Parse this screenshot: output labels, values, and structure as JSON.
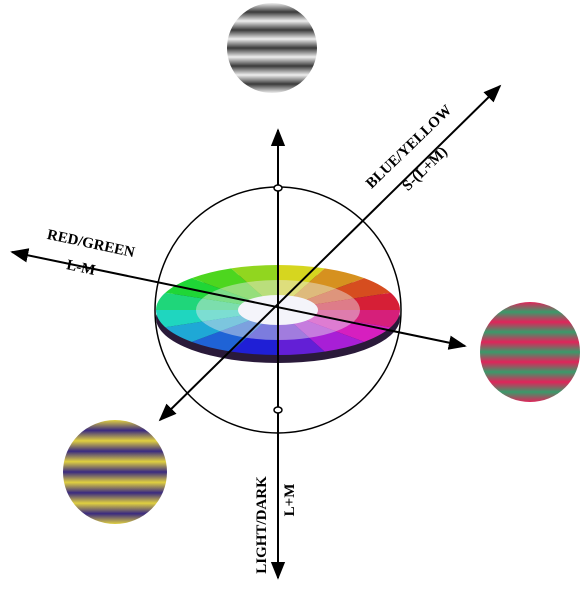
{
  "axes": [
    {
      "label": "RED/GREEN",
      "sublabel": "L-M"
    },
    {
      "label": "BLUE/YELLOW",
      "sublabel": "S-(L+M)"
    },
    {
      "label": "LIGHT/DARK",
      "sublabel": "L+M"
    }
  ]
}
